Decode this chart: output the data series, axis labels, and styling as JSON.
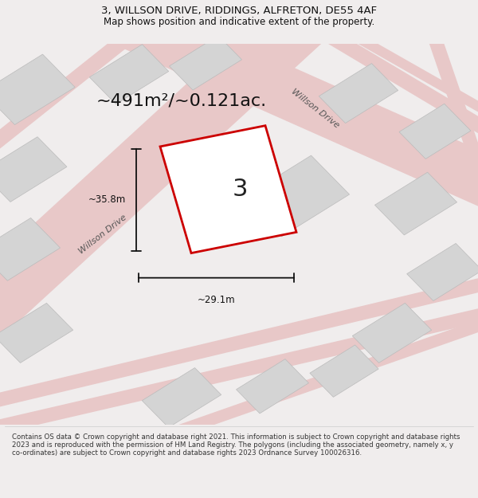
{
  "title_line1": "3, WILLSON DRIVE, RIDDINGS, ALFRETON, DE55 4AF",
  "title_line2": "Map shows position and indicative extent of the property.",
  "area_text": "~491m²/~0.121ac.",
  "label_number": "3",
  "dim_horizontal": "~29.1m",
  "dim_vertical": "~35.8m",
  "footer_text": "Contains OS data © Crown copyright and database right 2021. This information is subject to Crown copyright and database rights 2023 and is reproduced with the permission of HM Land Registry. The polygons (including the associated geometry, namely x, y co-ordinates) are subject to Crown copyright and database rights 2023 Ordnance Survey 100026316.",
  "bg_color": "#f0eded",
  "map_bg": "#faf8f8",
  "plot_color": "#cc0000",
  "road_color": "#e8c8c8",
  "building_color": "#d4d4d4",
  "building_edge": "#bbbbbb",
  "road_label1": "Willson Drive",
  "road_label2": "Willson Drive",
  "title_fontsize": 9.5,
  "subtitle_fontsize": 8.5,
  "area_fontsize": 16,
  "dim_fontsize": 8.5,
  "number_fontsize": 22
}
